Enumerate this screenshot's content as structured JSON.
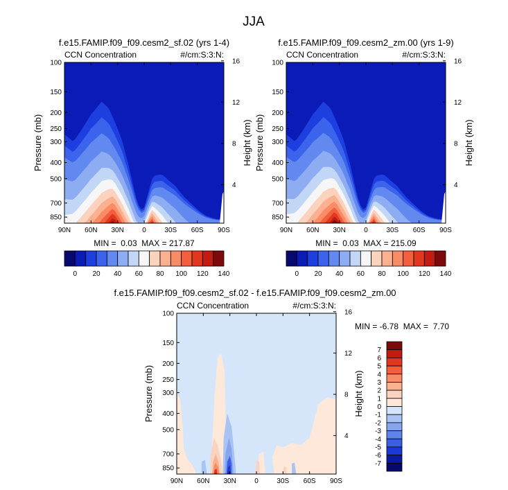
{
  "figure": {
    "title": "JJA"
  },
  "chart_data": [
    {
      "type": "contour",
      "title": "f.e15.FAMIP.f09_f09.cesm2_sf.02 (yrs 1-4)",
      "left_label": "CCN Concentration",
      "right_label": "#/cm:S:3:N:",
      "xlabel": "",
      "ylabel": "Pressure (mb)",
      "y2label": "Height (km)",
      "x_ticks": [
        "90N",
        "60N",
        "30N",
        "0",
        "30S",
        "60S",
        "90S"
      ],
      "y_ticks": [
        100,
        150,
        200,
        250,
        300,
        400,
        500,
        700,
        850
      ],
      "y2_ticks": [
        16,
        12,
        8,
        4
      ],
      "x_range": [
        90,
        -90
      ],
      "y_range": [
        100,
        925
      ],
      "y_log": true,
      "stats": "MIN =  0.03  MAX = 217.87",
      "colorbar": {
        "orientation": "horizontal",
        "labels": [
          "0",
          "20",
          "40",
          "60",
          "80",
          "100",
          "120",
          "140"
        ],
        "colors": [
          "#08086e",
          "#0a1bb8",
          "#1e3fe0",
          "#3b63ec",
          "#6189f0",
          "#8eacf2",
          "#c2d6f6",
          "#f6f6f6",
          "#fbd2bd",
          "#fbb18f",
          "#f98b65",
          "#f35e3c",
          "#e2371f",
          "#c21c12",
          "#7d0a0a"
        ]
      }
    },
    {
      "type": "contour",
      "title": "f.e15.FAMIP.f09_f09.cesm2_zm.00 (yrs 1-9)",
      "left_label": "CCN Concentration",
      "right_label": "#/cm:S:3:N:",
      "xlabel": "",
      "ylabel": "Pressure (mb)",
      "y2label": "Height (km)",
      "x_ticks": [
        "90N",
        "60N",
        "30N",
        "0",
        "30S",
        "60S",
        "90S"
      ],
      "y_ticks": [
        100,
        150,
        200,
        250,
        300,
        400,
        500,
        700,
        850
      ],
      "y2_ticks": [
        16,
        12,
        8,
        4
      ],
      "x_range": [
        90,
        -90
      ],
      "y_range": [
        100,
        925
      ],
      "y_log": true,
      "stats": "MIN =  0.03  MAX = 215.09",
      "colorbar": {
        "orientation": "horizontal",
        "labels": [
          "0",
          "20",
          "40",
          "60",
          "80",
          "100",
          "120",
          "140"
        ],
        "colors": [
          "#08086e",
          "#0a1bb8",
          "#1e3fe0",
          "#3b63ec",
          "#6189f0",
          "#8eacf2",
          "#c2d6f6",
          "#f6f6f6",
          "#fbd2bd",
          "#fbb18f",
          "#f98b65",
          "#f35e3c",
          "#e2371f",
          "#c21c12",
          "#7d0a0a"
        ]
      }
    },
    {
      "type": "contour",
      "title": "f.e15.FAMIP.f09_f09.cesm2_sf.02 - f.e15.FAMIP.f09_f09.cesm2_zm.00",
      "left_label": "CCN Concentration",
      "right_label": "#/cm:S:3:N:",
      "xlabel": "",
      "ylabel": "Pressure (mb)",
      "y2label": "Height (km)",
      "x_ticks": [
        "90N",
        "60N",
        "30N",
        "0",
        "30S",
        "60S",
        "90S"
      ],
      "y_ticks": [
        100,
        150,
        200,
        250,
        300,
        400,
        500,
        700,
        850
      ],
      "y2_ticks": [
        16,
        12,
        8,
        4
      ],
      "x_range": [
        90,
        -90
      ],
      "y_range": [
        100,
        925
      ],
      "y_log": true,
      "stats": "MIN = -6.78  MAX =  7.70",
      "colorbar": {
        "orientation": "vertical",
        "labels": [
          "7",
          "6",
          "5",
          "4",
          "3",
          "2",
          "1",
          "0",
          "-1",
          "-2",
          "-3",
          "-4",
          "-5",
          "-6",
          "-7"
        ],
        "colors": [
          "#7d0a0a",
          "#c21c12",
          "#e2371f",
          "#f35e3c",
          "#f98b65",
          "#fbb18f",
          "#fbd2bd",
          "#fde8da",
          "#d6e6fa",
          "#a9c3f3",
          "#86a5ef",
          "#5f83ea",
          "#3b5ee3",
          "#1d38d6",
          "#0b1aa6",
          "#06086c"
        ]
      }
    }
  ]
}
